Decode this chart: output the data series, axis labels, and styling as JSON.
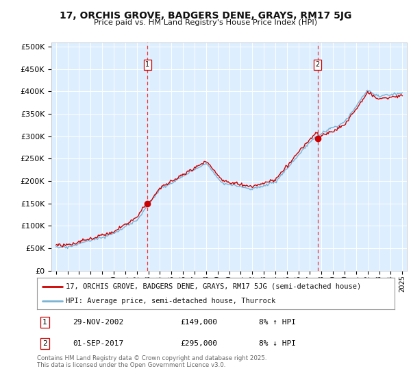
{
  "title": "17, ORCHIS GROVE, BADGERS DENE, GRAYS, RM17 5JG",
  "subtitle": "Price paid vs. HM Land Registry's House Price Index (HPI)",
  "ylabel_ticks": [
    "£0",
    "£50K",
    "£100K",
    "£150K",
    "£200K",
    "£250K",
    "£300K",
    "£350K",
    "£400K",
    "£450K",
    "£500K"
  ],
  "ytick_vals": [
    0,
    50000,
    100000,
    150000,
    200000,
    250000,
    300000,
    350000,
    400000,
    450000,
    500000
  ],
  "ylim": [
    0,
    510000
  ],
  "xlim_start": 1994.6,
  "xlim_end": 2025.4,
  "sale1_x": 2002.92,
  "sale1_y": 149000,
  "sale1_label": "1",
  "sale2_x": 2017.67,
  "sale2_y": 295000,
  "sale2_label": "2",
  "legend_line1": "17, ORCHIS GROVE, BADGERS DENE, GRAYS, RM17 5JG (semi-detached house)",
  "legend_line2": "HPI: Average price, semi-detached house, Thurrock",
  "table_row1": [
    "1",
    "29-NOV-2002",
    "£149,000",
    "8% ↑ HPI"
  ],
  "table_row2": [
    "2",
    "01-SEP-2017",
    "£295,000",
    "8% ↓ HPI"
  ],
  "footer": "Contains HM Land Registry data © Crown copyright and database right 2025.\nThis data is licensed under the Open Government Licence v3.0.",
  "hpi_color": "#7ab3d4",
  "price_color": "#cc0000",
  "bg_color": "#ddeeff",
  "grid_color": "#ffffff",
  "vline_color": "#ee3333"
}
